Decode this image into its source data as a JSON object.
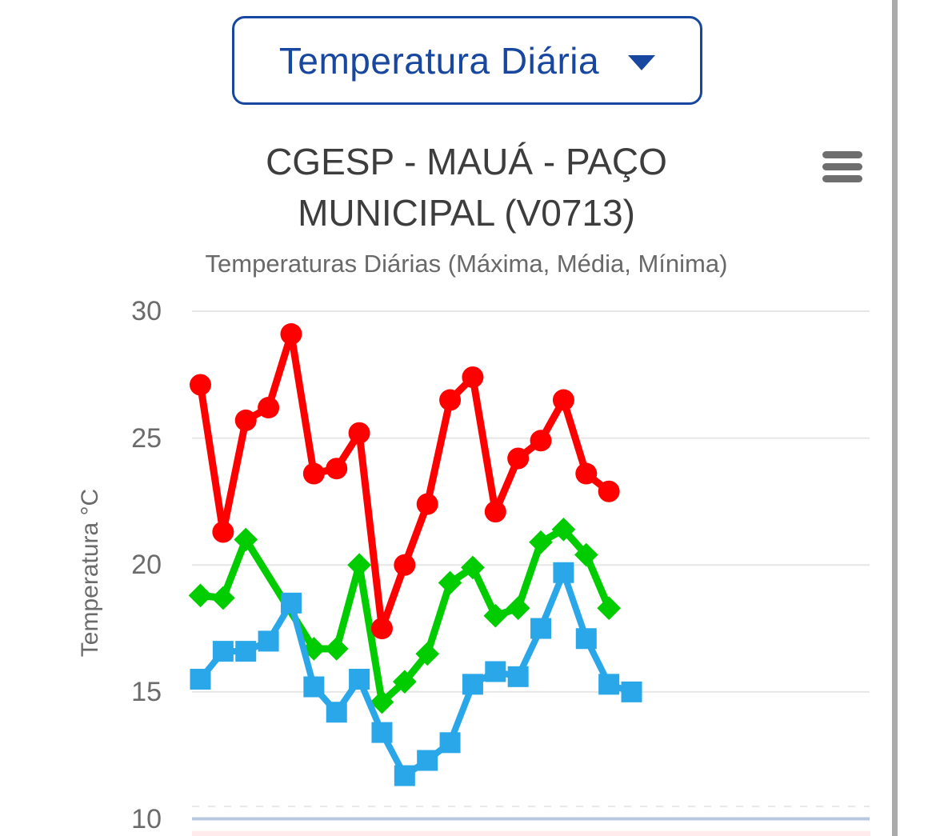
{
  "header": {
    "dropdown": {
      "label": "Temperatura Diária"
    },
    "station_title": "CGESP - MAUÁ - PAÇO MUNICIPAL (V0713)"
  },
  "chart_data": {
    "type": "line",
    "title": "Temperaturas Diárias (Máxima, Média, Mínima)",
    "x": [
      1,
      2,
      3,
      4,
      5,
      6,
      7,
      8,
      9,
      10,
      11,
      12,
      13,
      14,
      15,
      16,
      17,
      18,
      19,
      20
    ],
    "x_axis": {
      "labels_visible": false
    },
    "y_axis": {
      "title": "Temperatura °C",
      "ticks": [
        30,
        25,
        20,
        15,
        10
      ],
      "range": [
        10,
        30.5
      ]
    },
    "grid": true,
    "legend": "none",
    "series": [
      {
        "name": "Máxima",
        "marker": "circle",
        "color": "#FF0000",
        "values": [
          27.1,
          21.3,
          25.7,
          26.2,
          29.1,
          23.6,
          23.8,
          25.2,
          17.5,
          20.0,
          22.4,
          26.5,
          27.4,
          22.1,
          24.2,
          24.9,
          26.5,
          23.6,
          22.9,
          null
        ]
      },
      {
        "name": "Média",
        "marker": "diamond",
        "color": "#00CC00",
        "values": [
          18.8,
          18.7,
          21.0,
          null,
          null,
          16.7,
          16.7,
          20.0,
          14.6,
          15.4,
          16.5,
          19.3,
          19.9,
          18.0,
          18.3,
          20.9,
          21.4,
          20.4,
          18.3,
          null
        ]
      },
      {
        "name": "Mínima",
        "marker": "square",
        "color": "#2AA7E8",
        "values": [
          15.5,
          16.6,
          16.6,
          17.0,
          18.5,
          15.2,
          14.2,
          15.5,
          13.4,
          11.7,
          12.3,
          13.0,
          15.3,
          15.8,
          15.6,
          17.5,
          19.7,
          17.1,
          15.3,
          15.0
        ]
      }
    ],
    "colors": {
      "grid": "#E6E6E6",
      "axis_line": "#B9C7E1",
      "accent_navy": "#17479E"
    }
  },
  "scrollbar": {
    "color": "#ABABAB"
  }
}
